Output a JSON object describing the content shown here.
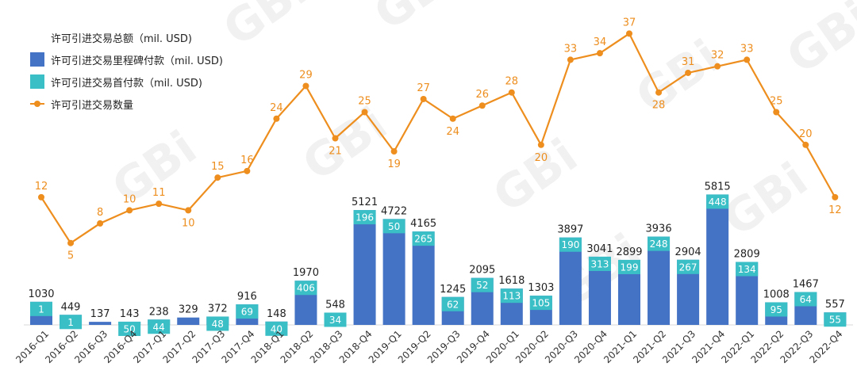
{
  "legend": {
    "total": "许可引进交易总额（mil. USD)",
    "milestone": "许可引进交易里程碑付款（mil. USD)",
    "upfront": "许可引进交易首付款（mil. USD)",
    "count": "许可引进交易数量"
  },
  "colors": {
    "milestone": "#4472c4",
    "upfront": "#3bbfc7",
    "count": "#ed8e1e"
  },
  "watermark": "GBi",
  "chart_data": {
    "type": "bar",
    "categories": [
      "2016-Q1",
      "2016-Q2",
      "2016-Q3",
      "2016-Q4",
      "2017-Q1",
      "2017-Q2",
      "2017-Q3",
      "2017-Q4",
      "2018-Q1",
      "2018-Q2",
      "2018-Q3",
      "2018-Q4",
      "2019-Q1",
      "2019-Q2",
      "2019-Q3",
      "2019-Q4",
      "2020-Q1",
      "2020-Q2",
      "2020-Q3",
      "2020-Q4",
      "2021-Q1",
      "2021-Q2",
      "2021-Q3",
      "2021-Q4",
      "2022-Q1",
      "2022-Q2",
      "2022-Q3",
      "2022-Q4"
    ],
    "series": [
      {
        "name": "许可引进交易总额（mil. USD)",
        "values": [
          1030,
          449,
          137,
          143,
          238,
          329,
          372,
          916,
          148,
          1970,
          548,
          5121,
          4722,
          4165,
          1245,
          2095,
          1618,
          1303,
          3897,
          3041,
          2899,
          3936,
          2904,
          5815,
          2809,
          1008,
          1467,
          557
        ]
      },
      {
        "name": "许可引进交易首付款（mil. USD)",
        "values": [
          1,
          1,
          null,
          50,
          44,
          null,
          48,
          69,
          40,
          406,
          34,
          196,
          50,
          265,
          62,
          52,
          113,
          105,
          190,
          313,
          199,
          248,
          267,
          448,
          134,
          95,
          64,
          55
        ]
      },
      {
        "name": "许可引进交易数量",
        "values": [
          12,
          5,
          8,
          10,
          11,
          10,
          15,
          16,
          24,
          29,
          21,
          25,
          19,
          27,
          24,
          26,
          28,
          20,
          33,
          34,
          37,
          28,
          31,
          32,
          33,
          25,
          20,
          12
        ]
      }
    ]
  }
}
